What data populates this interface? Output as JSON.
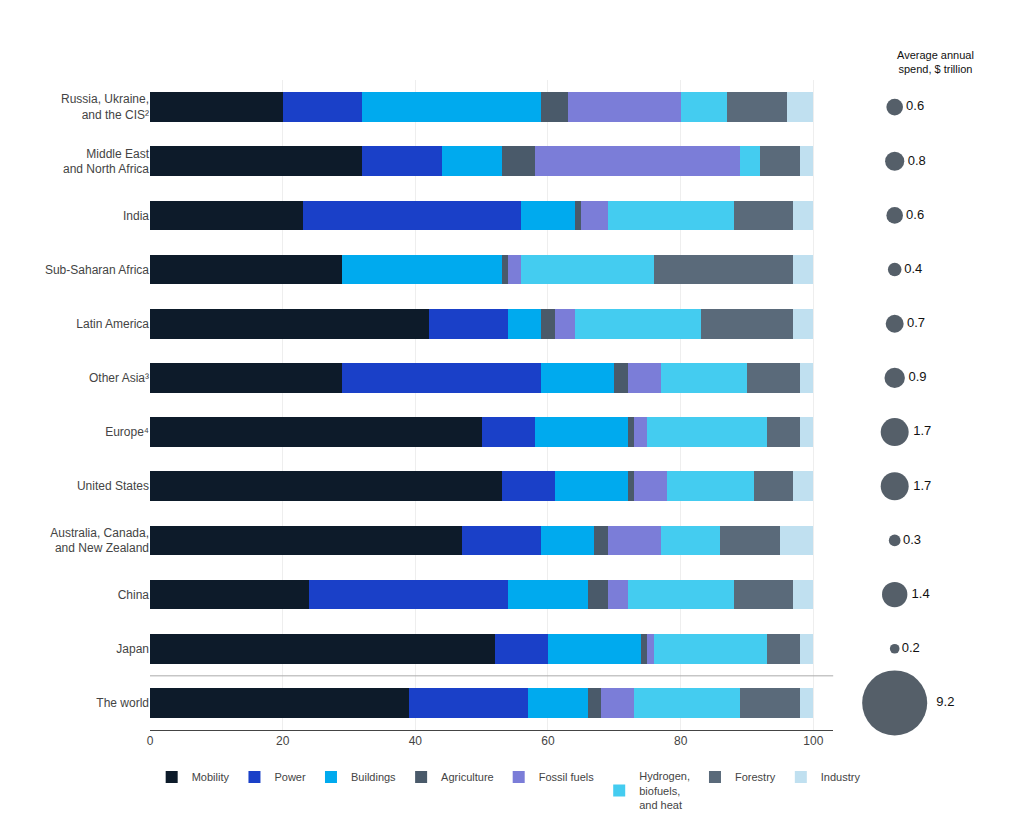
{
  "chart_data": [
    {
      "type": "bar",
      "orientation": "horizontal",
      "stacked": true,
      "categories": [
        "Russia, Ukraine,\nand the CIS²",
        "Middle East\nand North Africa",
        "India",
        "Sub-Saharan Africa",
        "Latin America",
        "Other Asia³",
        "Europe⁴",
        "United States",
        "Australia, Canada,\nand New Zealand",
        "China",
        "Japan",
        "The world"
      ],
      "series": [
        {
          "name": "Mobility",
          "color": "#0d1b2a",
          "values": [
            20,
            32,
            23,
            29,
            42,
            29,
            50,
            53,
            47,
            24,
            52,
            39
          ]
        },
        {
          "name": "Power",
          "color": "#1a40c8",
          "values": [
            12,
            12,
            33,
            0,
            12,
            30,
            8,
            8,
            12,
            30,
            8,
            18
          ]
        },
        {
          "name": "Buildings",
          "color": "#00aaee",
          "values": [
            27,
            9,
            8,
            24,
            5,
            11,
            14,
            11,
            8,
            12,
            14,
            9
          ]
        },
        {
          "name": "Agriculture",
          "color": "#4a5a6a",
          "values": [
            4,
            5,
            1,
            1,
            2,
            2,
            1,
            1,
            2,
            3,
            1,
            2
          ]
        },
        {
          "name": "Fossil fuels",
          "color": "#7b7dd8",
          "values": [
            17,
            31,
            4,
            2,
            3,
            5,
            2,
            5,
            8,
            3,
            1,
            5
          ]
        },
        {
          "name": "Hydrogen,\nbiofuels,\nand heat",
          "color": "#44ccf0",
          "values": [
            7,
            3,
            19,
            20,
            19,
            13,
            18,
            13,
            9,
            16,
            17,
            16
          ]
        },
        {
          "name": "Forestry",
          "color": "#5a6a7a",
          "values": [
            9,
            6,
            9,
            21,
            14,
            8,
            5,
            6,
            9,
            9,
            5,
            9
          ]
        },
        {
          "name": "Industry",
          "color": "#c0e0f0",
          "values": [
            4,
            2,
            3,
            3,
            3,
            2,
            2,
            3,
            5,
            3,
            2,
            2
          ]
        }
      ],
      "xlim": [
        0,
        103
      ],
      "xticks": [
        0,
        20,
        40,
        60,
        80,
        100
      ],
      "grid": true,
      "legend": "bottom"
    },
    {
      "type": "bubble",
      "title": "Average annual\nspend, $ trillion",
      "categories": [
        "Russia, Ukraine,\nand the CIS²",
        "Middle East\nand North Africa",
        "India",
        "Sub-Saharan Africa",
        "Latin America",
        "Other Asia³",
        "Europe⁴",
        "United States",
        "Australia, Canada,\nand New Zealand",
        "China",
        "Japan",
        "The world"
      ],
      "values": [
        0.6,
        0.8,
        0.6,
        0.4,
        0.7,
        0.9,
        1.7,
        1.7,
        0.3,
        1.4,
        0.2,
        9.2
      ],
      "color": "#0d1b2a",
      "data_labels": true,
      "tick_labels": false
    }
  ]
}
